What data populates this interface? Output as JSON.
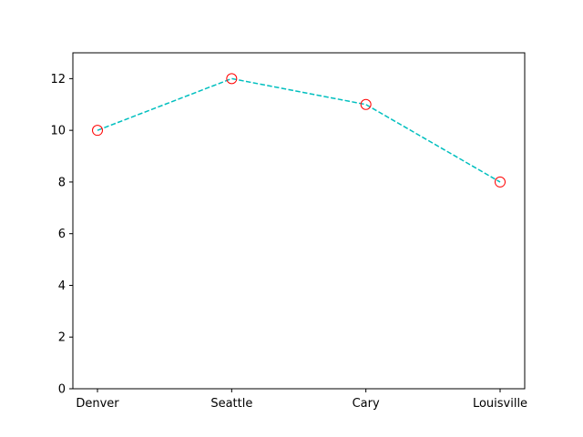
{
  "chart_data": {
    "type": "line",
    "categories": [
      "Denver",
      "Seattle",
      "Cary",
      "Louisville"
    ],
    "values": [
      10,
      12,
      11,
      8
    ],
    "ylim": [
      0,
      13
    ],
    "yticks": [
      0,
      2,
      4,
      6,
      8,
      10,
      12
    ],
    "ytick_labels": [
      "0",
      "2",
      "4",
      "6",
      "8",
      "10",
      "12"
    ],
    "line_style": "dashed",
    "line_color": "#00bfbf",
    "marker": "open-circle",
    "marker_color": "#ff0000",
    "grid": false,
    "legend": "none"
  }
}
